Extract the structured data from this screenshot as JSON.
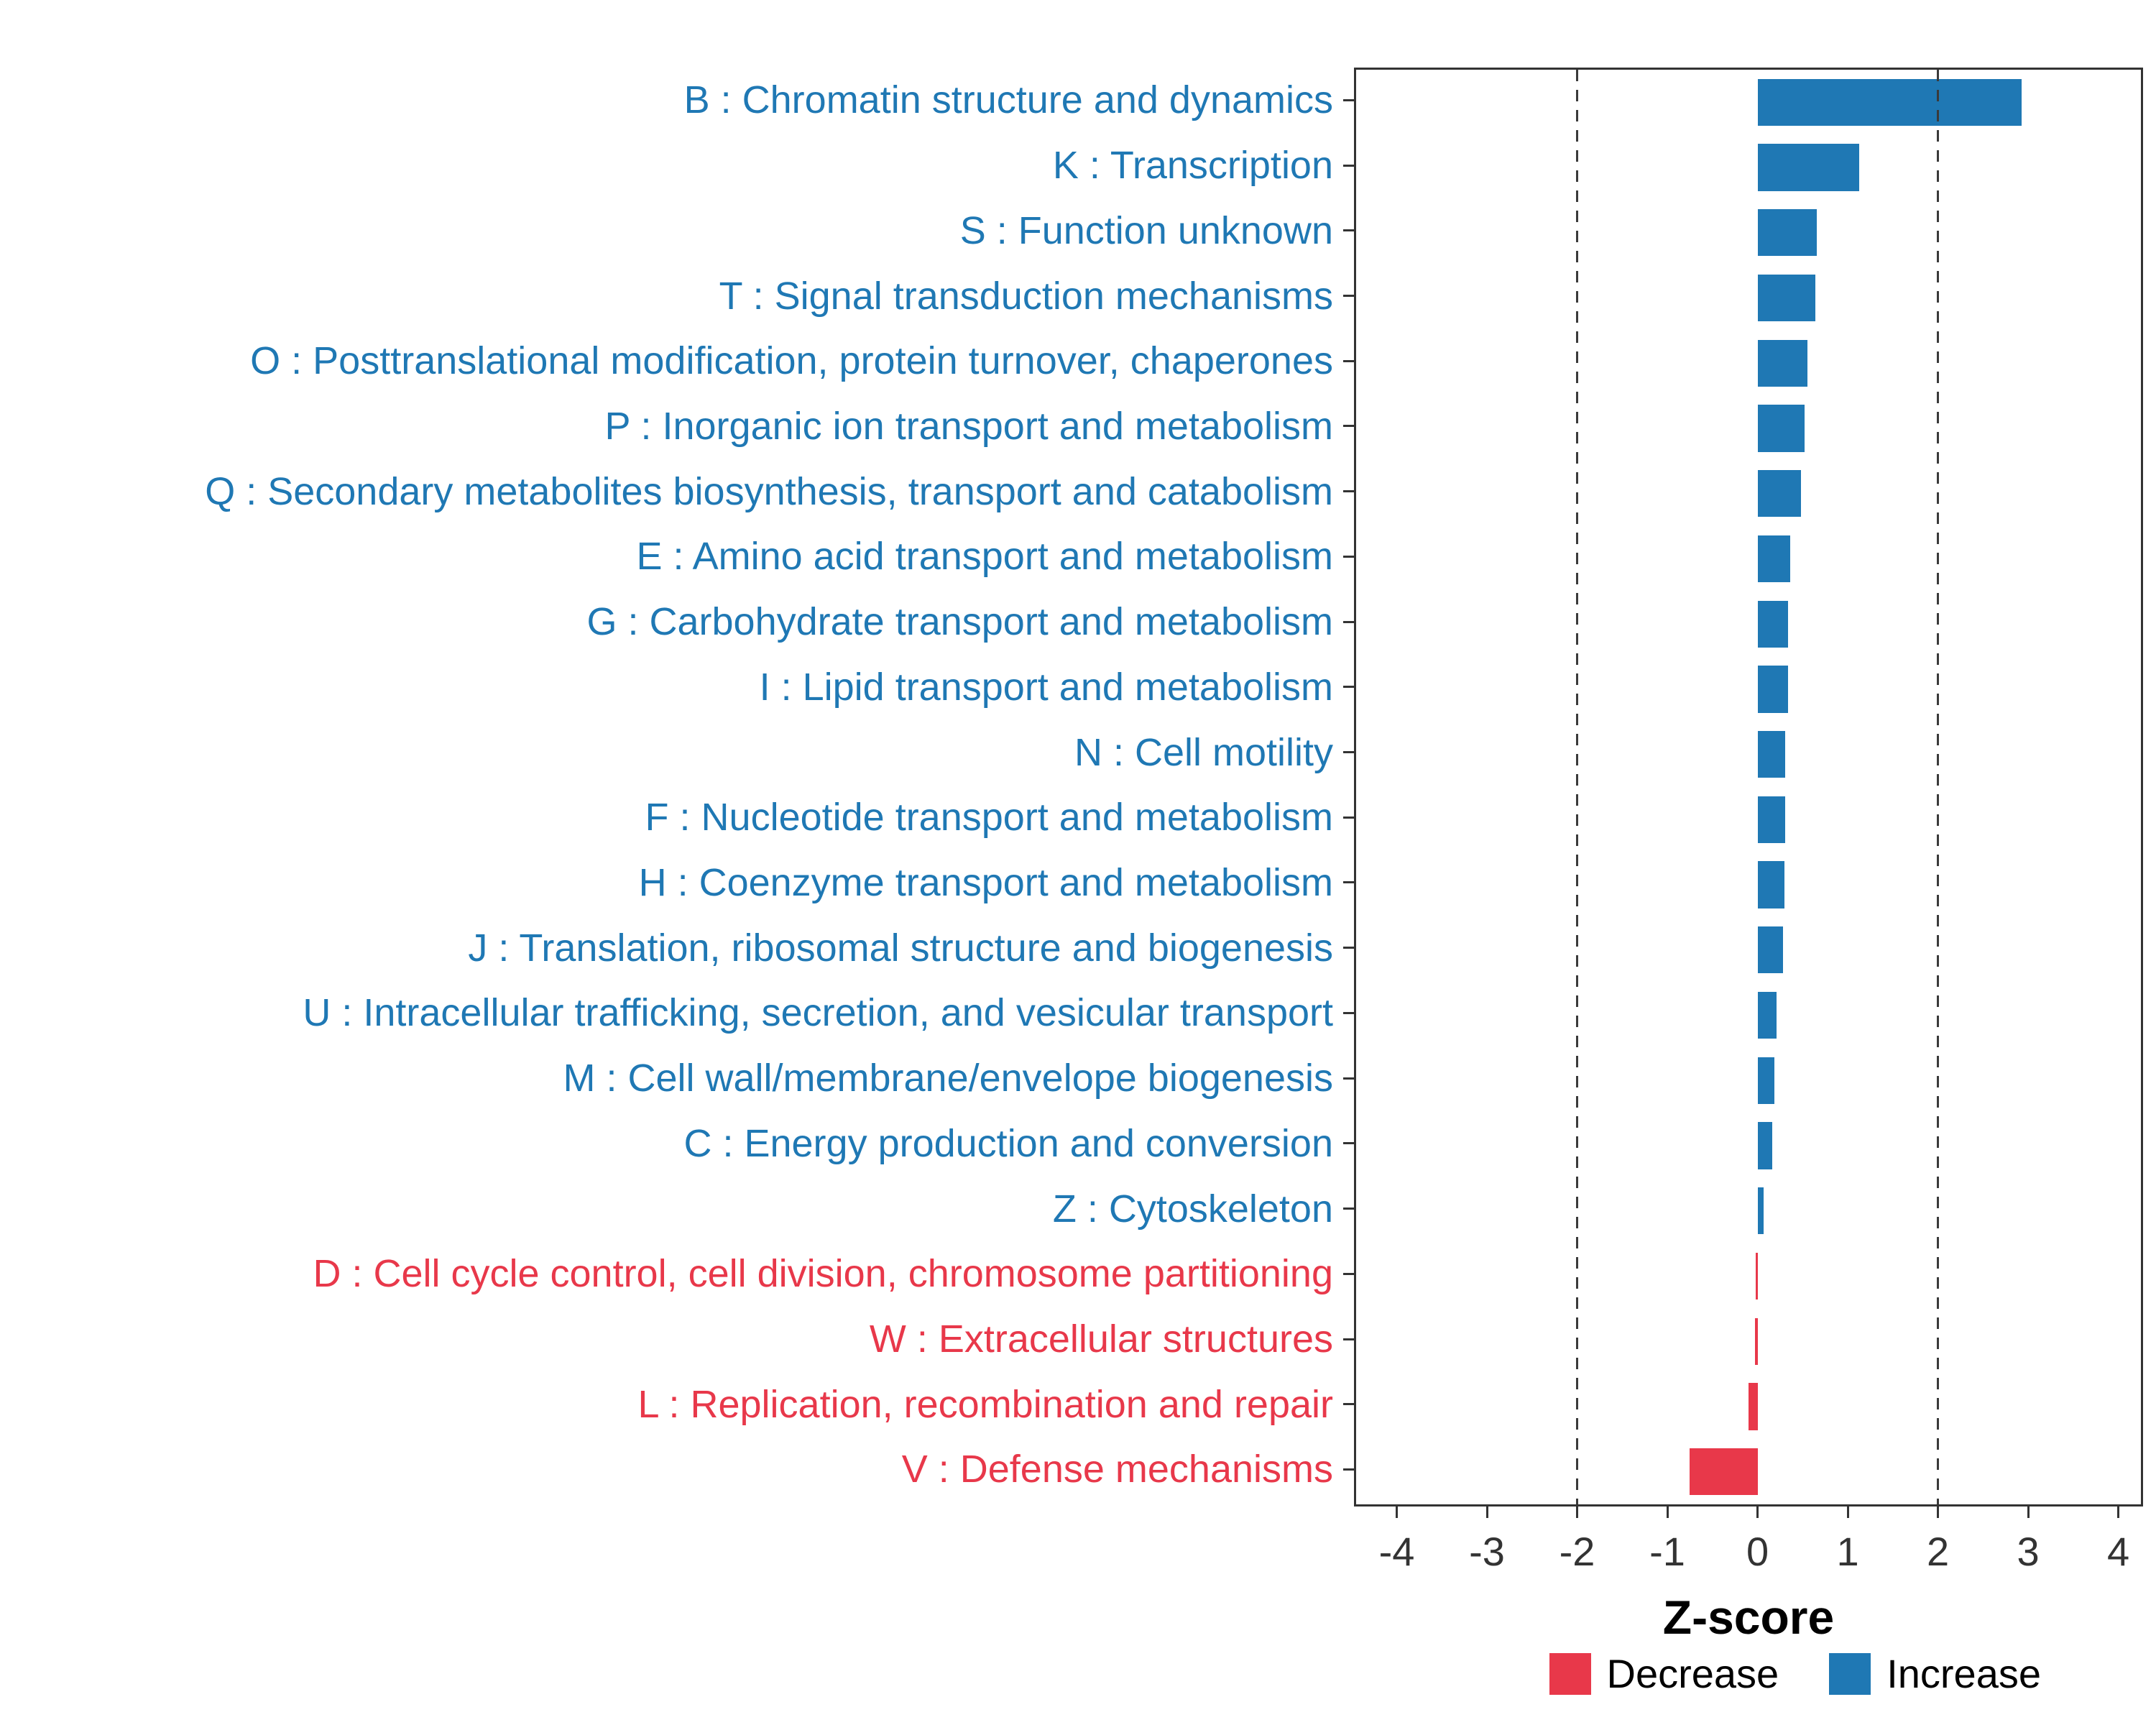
{
  "chart_data": {
    "type": "bar",
    "orientation": "horizontal",
    "title": "",
    "xlabel": "Z-score",
    "ylabel": "",
    "axis": {
      "min": -4.45,
      "max": 4.25,
      "ticks": [
        -4,
        -3,
        -2,
        -1,
        0,
        1,
        2,
        3,
        4
      ],
      "dashed_lines": [
        -2,
        2
      ],
      "grid": "off"
    },
    "categories": [
      "B : Chromatin structure and dynamics",
      "K : Transcription",
      "S : Function unknown",
      "T : Signal transduction mechanisms",
      "O : Posttranslational modification, protein turnover, chaperones",
      "P : Inorganic ion transport and metabolism",
      "Q : Secondary metabolites biosynthesis, transport and catabolism",
      "E : Amino acid transport and metabolism",
      "G : Carbohydrate transport and metabolism",
      "I : Lipid transport and metabolism",
      "N : Cell motility",
      "F : Nucleotide transport and metabolism",
      "H : Coenzyme transport and metabolism",
      "J : Translation, ribosomal structure and biogenesis",
      "U : Intracellular trafficking, secretion, and vesicular transport",
      "M : Cell wall/membrane/envelope biogenesis",
      "C : Energy production and conversion",
      "Z : Cytoskeleton",
      "D : Cell cycle control, cell division, chromosome partitioning",
      "W : Extracellular structures",
      "L : Replication, recombination and repair",
      "V : Defense mechanisms"
    ],
    "values": [
      2.93,
      1.13,
      0.66,
      0.64,
      0.55,
      0.52,
      0.48,
      0.36,
      0.34,
      0.34,
      0.31,
      0.31,
      0.3,
      0.28,
      0.21,
      0.19,
      0.16,
      0.07,
      -0.02,
      -0.03,
      -0.1,
      -0.75
    ],
    "groups": [
      "Increase",
      "Increase",
      "Increase",
      "Increase",
      "Increase",
      "Increase",
      "Increase",
      "Increase",
      "Increase",
      "Increase",
      "Increase",
      "Increase",
      "Increase",
      "Increase",
      "Increase",
      "Increase",
      "Increase",
      "Increase",
      "Decrease",
      "Decrease",
      "Decrease",
      "Decrease"
    ],
    "colors": {
      "Increase": "#1F78B4",
      "Decrease": "#E8384A"
    },
    "legend": [
      {
        "label": "Decrease",
        "color": "#E8384A"
      },
      {
        "label": "Increase",
        "color": "#1F78B4"
      }
    ],
    "legend_position": "bottom-right"
  }
}
